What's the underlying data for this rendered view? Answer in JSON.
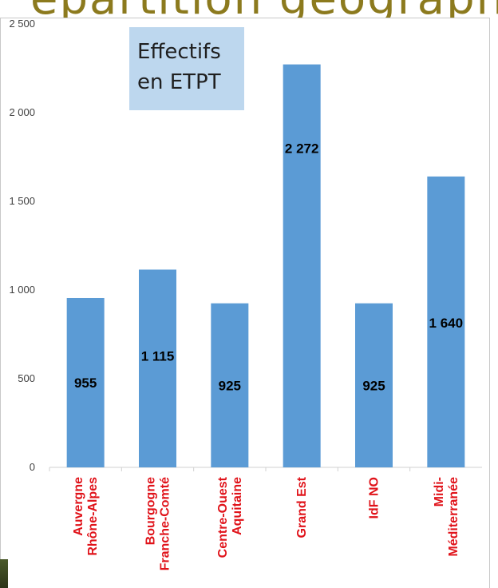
{
  "header": {
    "title": "épartition géographique"
  },
  "chart_data": {
    "type": "bar",
    "title": "Effectifs\nen ETPT",
    "title_lines": [
      "Effectifs",
      "en ETPT"
    ],
    "categories": [
      [
        "Auvergne",
        "Rhône-Alpes"
      ],
      [
        "Bourgogne",
        "Franche-Comté"
      ],
      [
        "Centre-Ouest",
        "Aquitaine"
      ],
      [
        "Grand Est"
      ],
      [
        "IdF NO"
      ],
      [
        "Midi-",
        "Méditerranée"
      ]
    ],
    "values": [
      955,
      1115,
      925,
      2272,
      925,
      1640
    ],
    "data_labels": [
      "955",
      "1 115",
      "925",
      "2 272",
      "925",
      "1 640"
    ],
    "yticks": [
      0,
      500,
      1000,
      1500,
      2000,
      2500
    ],
    "ytick_labels": [
      "0",
      "500",
      "1 000",
      "1 500",
      "2 000",
      "2 500"
    ],
    "ylim": [
      0,
      2500
    ],
    "grid": false,
    "bar_color": "#5b9bd5",
    "category_label_color": "#e0131a",
    "legend_box_color": "#bdd7ee"
  }
}
